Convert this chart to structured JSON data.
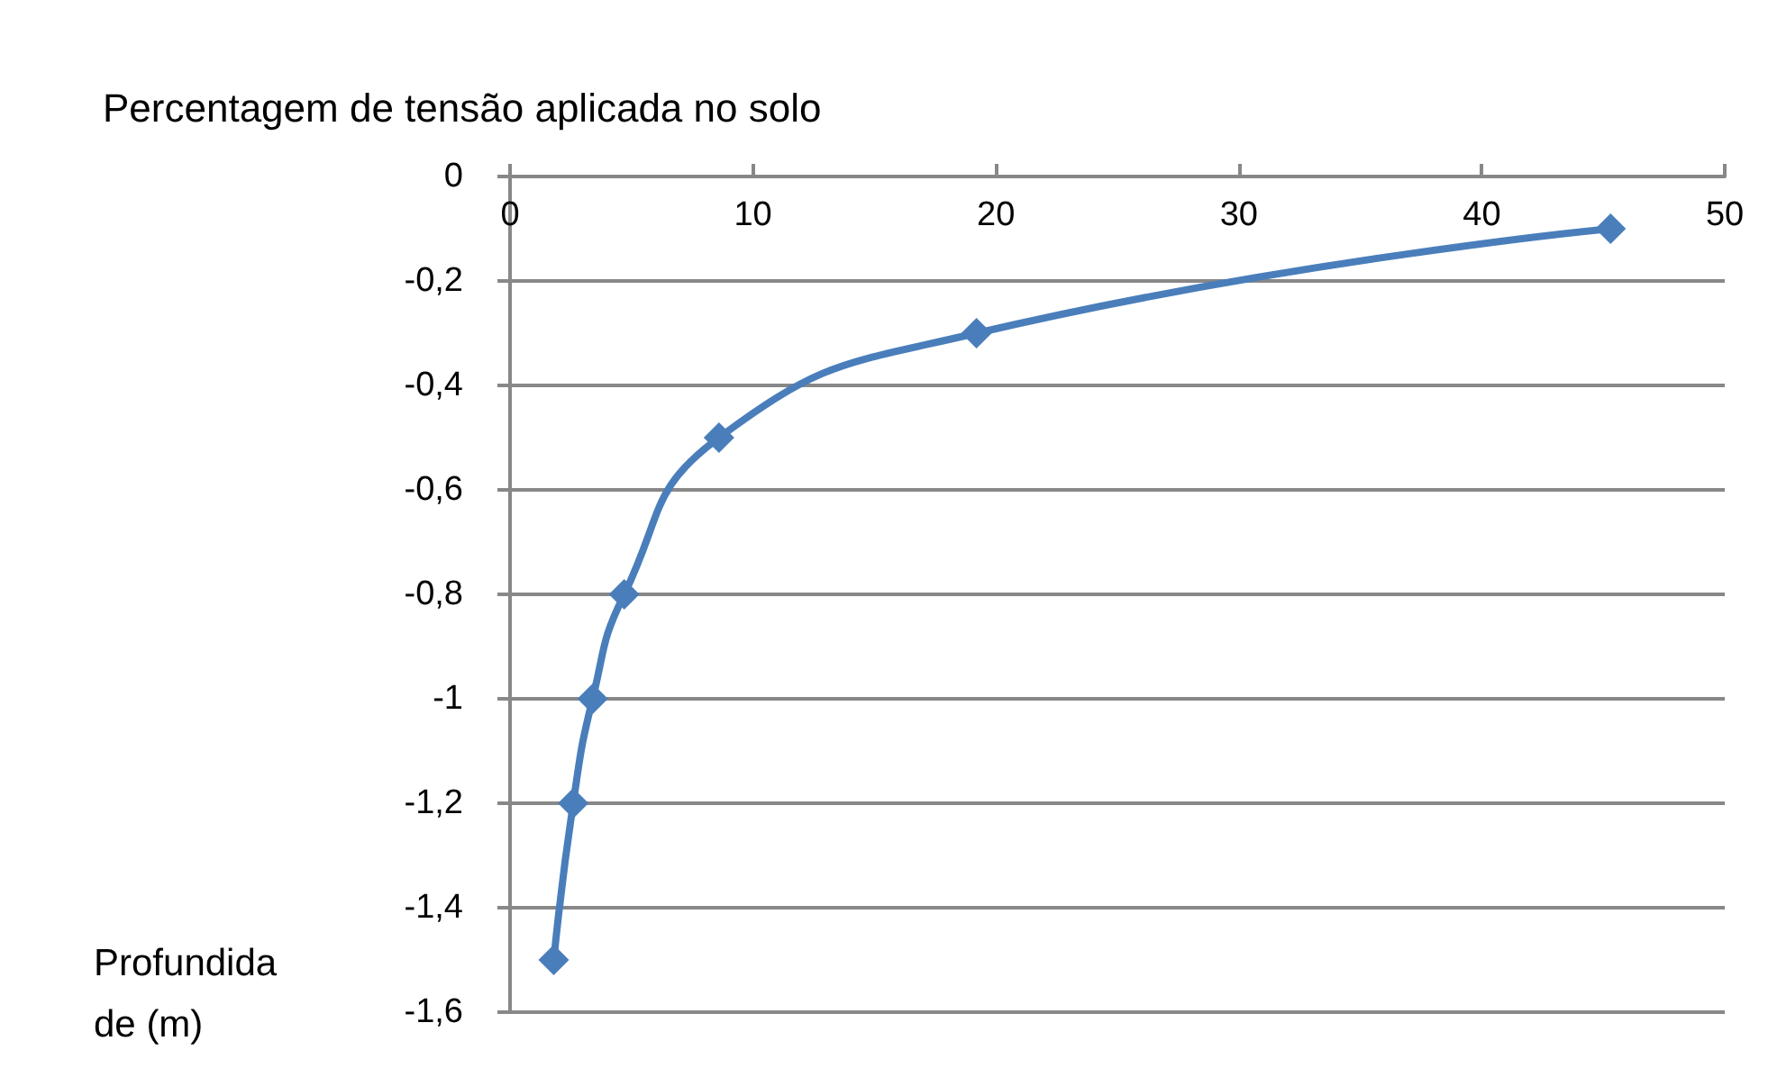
{
  "chart_data": {
    "type": "line",
    "title": "Percentagem de tensão aplicada no solo",
    "ylabel": "Profundidade (m)",
    "x": [
      1.8,
      2.6,
      3.4,
      4.7,
      8.6,
      19.2,
      45.3
    ],
    "series": [
      {
        "color": "#4a7ebb",
        "values": [
          -1.5,
          -1.2,
          -1.0,
          -0.8,
          -0.5,
          -0.3,
          -0.1
        ]
      }
    ],
    "xlim": [
      0,
      50
    ],
    "xticks": [
      0,
      10,
      20,
      30,
      40,
      50
    ],
    "ylim": [
      -1.6,
      0
    ],
    "yticks": [
      {
        "value": -1.6,
        "label": "-1,6"
      },
      {
        "value": -1.4,
        "label": "-1,4"
      },
      {
        "value": -1.2,
        "label": "-1,2"
      },
      -1,
      {
        "value": -0.8,
        "label": "-0,8"
      },
      {
        "value": -0.6,
        "label": "-0,6"
      },
      {
        "value": -0.4,
        "label": "-0,4"
      },
      {
        "value": -0.2,
        "label": "-0,2"
      },
      0
    ],
    "grid": "y",
    "marker": "diamond",
    "line_style": "solid"
  }
}
